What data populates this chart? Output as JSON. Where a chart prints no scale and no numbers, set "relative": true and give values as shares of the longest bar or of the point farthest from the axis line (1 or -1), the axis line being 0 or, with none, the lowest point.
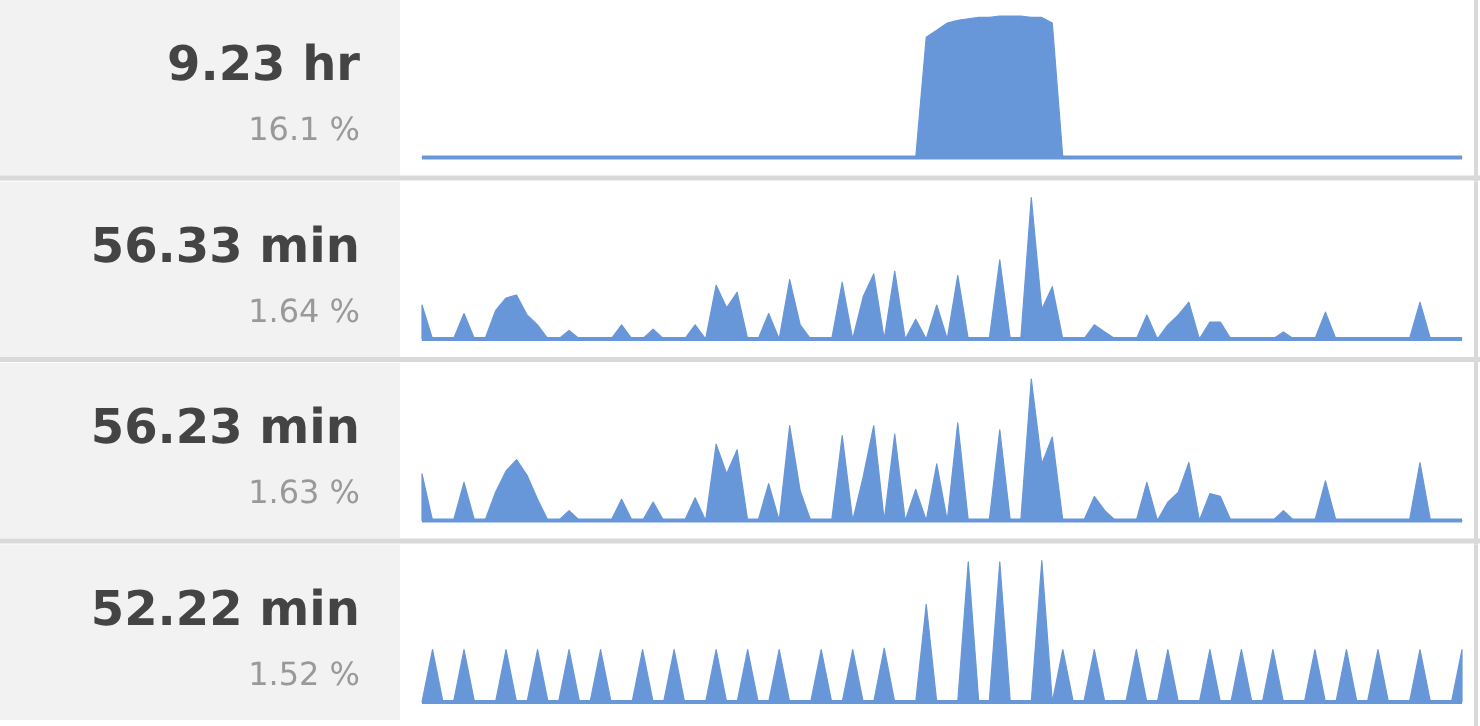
{
  "chart_data": [
    {
      "type": "area",
      "title": "9.23 hr",
      "subtitle": "16.1 %",
      "relative": true,
      "color": "#6897d9",
      "categories": [
        null,
        null,
        null,
        null,
        null,
        null,
        null,
        null,
        null,
        null,
        null,
        null,
        null,
        null,
        null,
        null,
        null,
        null,
        null,
        null,
        null,
        null,
        null,
        null,
        null,
        null,
        null,
        null,
        null,
        null,
        null,
        null,
        null,
        null,
        null,
        null,
        null,
        null,
        null,
        null,
        null,
        null,
        null,
        null,
        null,
        null,
        null,
        null,
        null,
        null,
        null,
        null,
        null,
        null,
        null,
        null,
        null,
        null,
        null,
        null,
        null,
        null,
        null,
        null,
        null,
        null,
        null,
        null,
        null,
        null,
        null,
        null,
        null,
        null,
        null,
        null,
        null,
        null,
        null,
        null,
        null,
        null,
        null,
        null,
        null,
        null,
        null,
        null,
        null,
        null,
        null,
        null,
        null,
        null,
        null,
        null,
        null,
        null,
        null,
        null
      ],
      "values": [
        0,
        0,
        0,
        0,
        0,
        0,
        0,
        0,
        0,
        0,
        0,
        0,
        0,
        0,
        0,
        0,
        0,
        0,
        0,
        0,
        0,
        0,
        0,
        0,
        0,
        0,
        0,
        0,
        0,
        0,
        0,
        0,
        0,
        0,
        0,
        0,
        0,
        0,
        0,
        0,
        0,
        0,
        0,
        0,
        0,
        0,
        0,
        0,
        0.85,
        0.9,
        0.95,
        0.97,
        0.98,
        0.99,
        0.99,
        1,
        1,
        1,
        0.99,
        0.99,
        0.95,
        0,
        0,
        0,
        0,
        0,
        0,
        0,
        0,
        0,
        0,
        0,
        0,
        0,
        0,
        0,
        0,
        0,
        0,
        0,
        0,
        0,
        0,
        0,
        0,
        0,
        0,
        0,
        0,
        0,
        0,
        0,
        0,
        0,
        0,
        0,
        0,
        0,
        0,
        0
      ]
    },
    {
      "type": "area",
      "title": "56.33 min",
      "subtitle": "1.64 %",
      "relative": true,
      "color": "#6897d9",
      "categories": [
        null,
        null,
        null,
        null,
        null,
        null,
        null,
        null,
        null,
        null,
        null,
        null,
        null,
        null,
        null,
        null,
        null,
        null,
        null,
        null,
        null,
        null,
        null,
        null,
        null,
        null,
        null,
        null,
        null,
        null,
        null,
        null,
        null,
        null,
        null,
        null,
        null,
        null,
        null,
        null,
        null,
        null,
        null,
        null,
        null,
        null,
        null,
        null,
        null,
        null,
        null,
        null,
        null,
        null,
        null,
        null,
        null,
        null,
        null,
        null,
        null,
        null,
        null,
        null,
        null,
        null,
        null,
        null,
        null,
        null,
        null,
        null,
        null,
        null,
        null,
        null,
        null,
        null,
        null,
        null,
        null,
        null,
        null,
        null,
        null,
        null,
        null,
        null,
        null,
        null,
        null,
        null,
        null,
        null,
        null,
        null,
        null,
        null,
        null,
        null
      ],
      "values": [
        0.24,
        0,
        0,
        0,
        0.18,
        0,
        0,
        0.2,
        0.29,
        0.31,
        0.17,
        0.1,
        0,
        0,
        0.06,
        0,
        0,
        0,
        0,
        0.1,
        0,
        0,
        0.07,
        0,
        0,
        0,
        0.1,
        0,
        0.38,
        0.22,
        0.33,
        0,
        0,
        0.18,
        0,
        0.42,
        0.1,
        0,
        0,
        0,
        0.4,
        0,
        0.3,
        0.46,
        0,
        0.48,
        0,
        0.14,
        0,
        0.24,
        0,
        0.45,
        0,
        0,
        0,
        0.56,
        0,
        0,
        1,
        0.21,
        0.37,
        0,
        0,
        0,
        0.1,
        0.05,
        0,
        0,
        0,
        0.17,
        0,
        0.1,
        0.17,
        0.26,
        0,
        0.12,
        0.12,
        0,
        0,
        0,
        0,
        0,
        0.05,
        0,
        0,
        0,
        0.19,
        0,
        0,
        0,
        0,
        0,
        0,
        0,
        0,
        0.26,
        0,
        0,
        0,
        0
      ]
    },
    {
      "type": "area",
      "title": "56.23 min",
      "subtitle": "1.63 %",
      "relative": true,
      "color": "#6897d9",
      "categories": [
        null,
        null,
        null,
        null,
        null,
        null,
        null,
        null,
        null,
        null,
        null,
        null,
        null,
        null,
        null,
        null,
        null,
        null,
        null,
        null,
        null,
        null,
        null,
        null,
        null,
        null,
        null,
        null,
        null,
        null,
        null,
        null,
        null,
        null,
        null,
        null,
        null,
        null,
        null,
        null,
        null,
        null,
        null,
        null,
        null,
        null,
        null,
        null,
        null,
        null,
        null,
        null,
        null,
        null,
        null,
        null,
        null,
        null,
        null,
        null,
        null,
        null,
        null,
        null,
        null,
        null,
        null,
        null,
        null,
        null,
        null,
        null,
        null,
        null,
        null,
        null,
        null,
        null,
        null,
        null,
        null,
        null,
        null,
        null,
        null,
        null,
        null,
        null,
        null,
        null,
        null,
        null,
        null,
        null,
        null,
        null,
        null,
        null,
        null,
        null
      ],
      "values": [
        0.33,
        0,
        0,
        0,
        0.27,
        0,
        0,
        0.2,
        0.35,
        0.43,
        0.32,
        0.15,
        0,
        0,
        0.07,
        0,
        0,
        0,
        0,
        0.15,
        0,
        0,
        0.13,
        0,
        0,
        0,
        0.16,
        0,
        0.54,
        0.33,
        0.5,
        0,
        0,
        0.26,
        0,
        0.67,
        0.21,
        0,
        0,
        0,
        0.6,
        0,
        0.31,
        0.67,
        0,
        0.61,
        0,
        0.22,
        0,
        0.4,
        0,
        0.69,
        0,
        0,
        0,
        0.64,
        0,
        0,
        1,
        0.4,
        0.59,
        0,
        0,
        0,
        0.17,
        0.07,
        0,
        0,
        0,
        0.27,
        0,
        0.13,
        0.2,
        0.41,
        0,
        0.19,
        0.17,
        0,
        0,
        0,
        0,
        0,
        0.07,
        0,
        0,
        0,
        0.28,
        0,
        0,
        0,
        0,
        0,
        0,
        0,
        0,
        0.41,
        0,
        0,
        0,
        0
      ]
    },
    {
      "type": "area",
      "title": "52.22 min",
      "subtitle": "1.52 %",
      "relative": true,
      "color": "#6897d9",
      "categories": [
        null,
        null,
        null,
        null,
        null,
        null,
        null,
        null,
        null,
        null,
        null,
        null,
        null,
        null,
        null,
        null,
        null,
        null,
        null,
        null,
        null,
        null,
        null,
        null,
        null,
        null,
        null,
        null,
        null,
        null,
        null,
        null,
        null,
        null,
        null,
        null,
        null,
        null,
        null,
        null,
        null,
        null,
        null,
        null,
        null,
        null,
        null,
        null,
        null,
        null,
        null,
        null,
        null,
        null,
        null,
        null,
        null,
        null,
        null,
        null,
        null,
        null,
        null,
        null,
        null,
        null,
        null,
        null,
        null,
        null,
        null,
        null,
        null,
        null,
        null,
        null,
        null,
        null,
        null,
        null,
        null,
        null,
        null,
        null,
        null,
        null,
        null,
        null,
        null,
        null,
        null,
        null,
        null,
        null,
        null,
        null,
        null,
        null,
        null,
        null
      ],
      "values": [
        0,
        0.37,
        0,
        0,
        0.37,
        0,
        0,
        0,
        0.37,
        0,
        0,
        0.37,
        0,
        0,
        0.37,
        0,
        0,
        0.37,
        0,
        0,
        0,
        0.37,
        0,
        0,
        0.37,
        0,
        0,
        0,
        0.37,
        0,
        0,
        0.37,
        0,
        0,
        0.37,
        0,
        0,
        0,
        0.37,
        0,
        0,
        0.37,
        0,
        0,
        0.38,
        0,
        0,
        0,
        0.69,
        0,
        0,
        0,
        0.99,
        0,
        0,
        0.99,
        0,
        0,
        0,
        1,
        0,
        0.37,
        0,
        0,
        0.37,
        0,
        0,
        0,
        0.37,
        0,
        0,
        0.37,
        0,
        0,
        0,
        0.37,
        0,
        0,
        0.37,
        0,
        0,
        0.37,
        0,
        0,
        0,
        0.37,
        0,
        0,
        0.37,
        0,
        0,
        0.37,
        0,
        0,
        0,
        0.37,
        0,
        0,
        0,
        0.37
      ]
    }
  ]
}
